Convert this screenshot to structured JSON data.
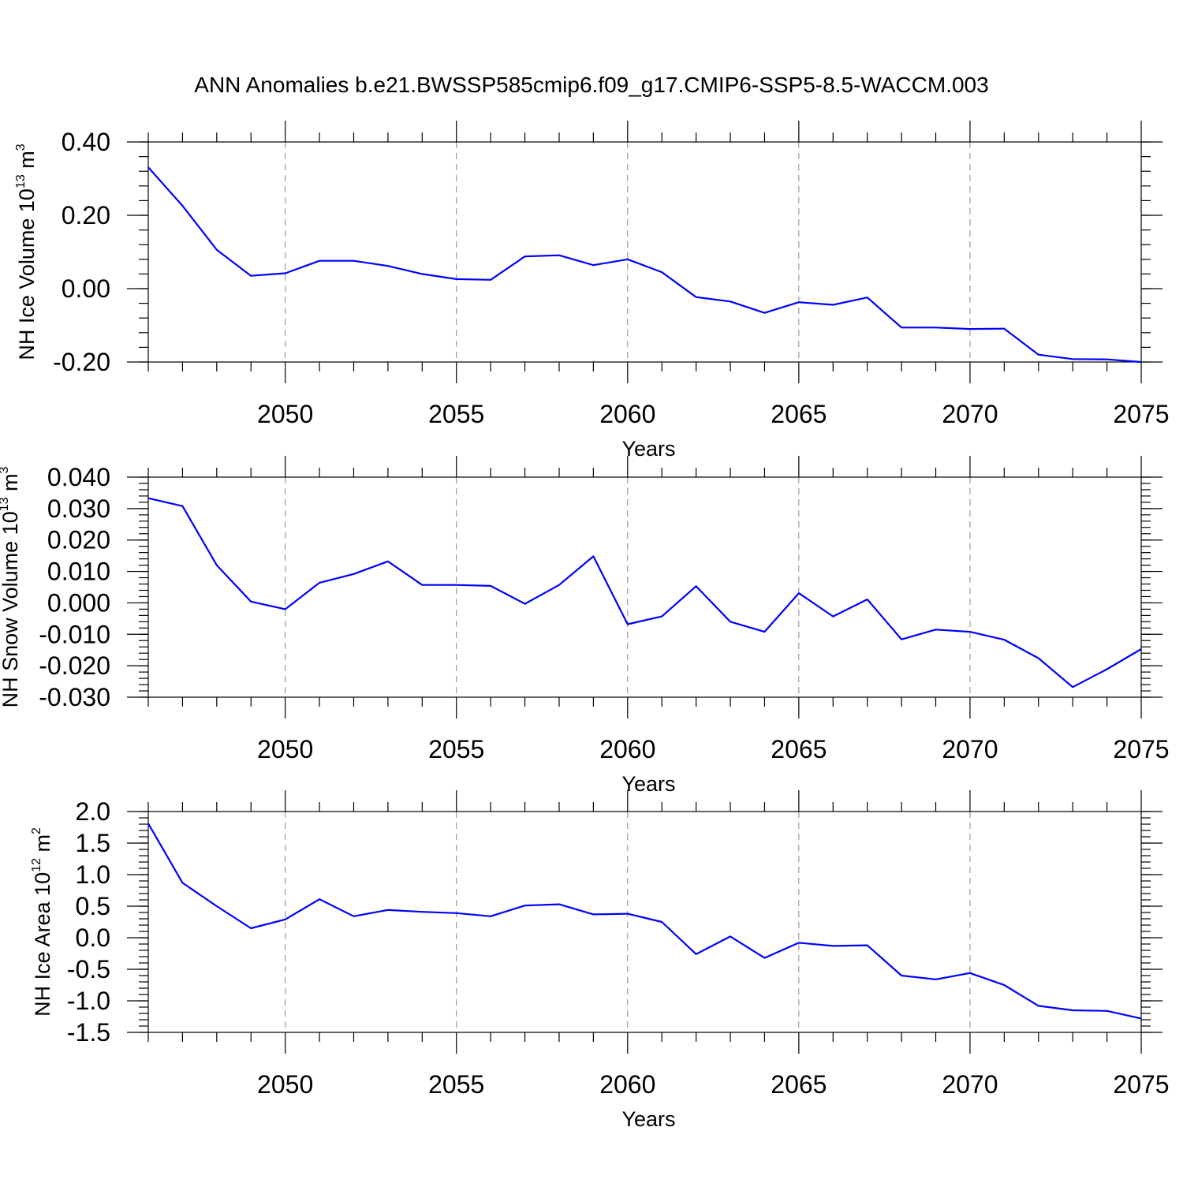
{
  "title": "ANN Anomalies b.e21.BWSSP585cmip6.f09_g17.CMIP6-SSP5-8.5-WACCM.003",
  "chart_data": [
    {
      "type": "line",
      "ylabel": {
        "text": "NH Ice Volume 10",
        "sup": "13",
        "unit": " m",
        "unit_sup": "3"
      },
      "xlabel": "Years",
      "xlim": [
        2046,
        2075
      ],
      "ylim": [
        -0.2,
        0.4
      ],
      "xticks": [
        2050,
        2055,
        2060,
        2065,
        2070,
        2075
      ],
      "xtick_labels": [
        "2050",
        "2055",
        "2060",
        "2065",
        "2070",
        "2075"
      ],
      "yticks": [
        -0.2,
        0.0,
        0.2,
        0.4
      ],
      "ytick_labels": [
        "-0.20",
        "0.00",
        "0.20",
        "0.40"
      ],
      "y_minor_step": 0.04,
      "grid_x": true,
      "series": [
        {
          "name": "NH Ice Volume",
          "color": "#0000ff",
          "x": [
            2046,
            2047,
            2048,
            2049,
            2050,
            2051,
            2052,
            2053,
            2054,
            2055,
            2056,
            2057,
            2058,
            2059,
            2060,
            2061,
            2062,
            2063,
            2064,
            2065,
            2066,
            2067,
            2068,
            2069,
            2070,
            2071,
            2072,
            2073,
            2074,
            2075
          ],
          "values": [
            0.331,
            0.226,
            0.106,
            0.035,
            0.042,
            0.076,
            0.076,
            0.062,
            0.04,
            0.026,
            0.024,
            0.088,
            0.091,
            0.064,
            0.08,
            0.045,
            -0.023,
            -0.035,
            -0.066,
            -0.037,
            -0.044,
            -0.024,
            -0.106,
            -0.106,
            -0.11,
            -0.109,
            -0.18,
            -0.192,
            -0.193,
            -0.2
          ]
        }
      ]
    },
    {
      "type": "line",
      "ylabel": {
        "text": "NH Snow Volume 10",
        "sup": "13",
        "unit": " m",
        "unit_sup": "3"
      },
      "xlabel": "Years",
      "xlim": [
        2046,
        2075
      ],
      "ylim": [
        -0.03,
        0.04
      ],
      "xticks": [
        2050,
        2055,
        2060,
        2065,
        2070,
        2075
      ],
      "xtick_labels": [
        "2050",
        "2055",
        "2060",
        "2065",
        "2070",
        "2075"
      ],
      "yticks": [
        -0.03,
        -0.02,
        -0.01,
        0.0,
        0.01,
        0.02,
        0.03,
        0.04
      ],
      "ytick_labels": [
        "-0.030",
        "-0.020",
        "-0.010",
        "0.000",
        "0.010",
        "0.020",
        "0.030",
        "0.040"
      ],
      "y_minor_step": 0.002,
      "grid_x": true,
      "series": [
        {
          "name": "NH Snow Volume",
          "color": "#0000ff",
          "x": [
            2046,
            2047,
            2048,
            2049,
            2050,
            2051,
            2052,
            2053,
            2054,
            2055,
            2056,
            2057,
            2058,
            2059,
            2060,
            2061,
            2062,
            2063,
            2064,
            2065,
            2066,
            2067,
            2068,
            2069,
            2070,
            2071,
            2072,
            2073,
            2074,
            2075
          ],
          "values": [
            0.0333,
            0.0308,
            0.012,
            0.0004,
            -0.002,
            0.0064,
            0.0092,
            0.0132,
            0.0057,
            0.0057,
            0.0054,
            -0.0003,
            0.0057,
            0.0148,
            -0.0068,
            -0.0043,
            0.0053,
            -0.006,
            -0.0092,
            0.0031,
            -0.0043,
            0.0011,
            -0.0116,
            -0.0085,
            -0.0092,
            -0.0117,
            -0.0176,
            -0.0268,
            -0.0211,
            -0.0147
          ]
        }
      ]
    },
    {
      "type": "line",
      "ylabel": {
        "text": "NH Ice Area 10",
        "sup": "12",
        "unit": " m",
        "unit_sup": "2"
      },
      "xlabel": "Years",
      "xlim": [
        2046,
        2075
      ],
      "ylim": [
        -1.5,
        2.0
      ],
      "xticks": [
        2050,
        2055,
        2060,
        2065,
        2070,
        2075
      ],
      "xtick_labels": [
        "2050",
        "2055",
        "2060",
        "2065",
        "2070",
        "2075"
      ],
      "yticks": [
        -1.5,
        -1.0,
        -0.5,
        0.0,
        0.5,
        1.0,
        1.5,
        2.0
      ],
      "ytick_labels": [
        "-1.5",
        "-1.0",
        "-0.5",
        "0.0",
        "0.5",
        "1.0",
        "1.5",
        "2.0"
      ],
      "y_minor_step": 0.1,
      "grid_x": true,
      "series": [
        {
          "name": "NH Ice Area",
          "color": "#0000ff",
          "x": [
            2046,
            2047,
            2048,
            2049,
            2050,
            2051,
            2052,
            2053,
            2054,
            2055,
            2056,
            2057,
            2058,
            2059,
            2060,
            2061,
            2062,
            2063,
            2064,
            2065,
            2066,
            2067,
            2068,
            2069,
            2070,
            2071,
            2072,
            2073,
            2074,
            2075
          ],
          "values": [
            1.81,
            0.87,
            0.5,
            0.15,
            0.29,
            0.61,
            0.34,
            0.44,
            0.41,
            0.39,
            0.34,
            0.51,
            0.53,
            0.37,
            0.38,
            0.25,
            -0.26,
            0.02,
            -0.32,
            -0.08,
            -0.13,
            -0.12,
            -0.6,
            -0.66,
            -0.56,
            -0.75,
            -1.08,
            -1.15,
            -1.16,
            -1.28
          ]
        }
      ]
    }
  ]
}
